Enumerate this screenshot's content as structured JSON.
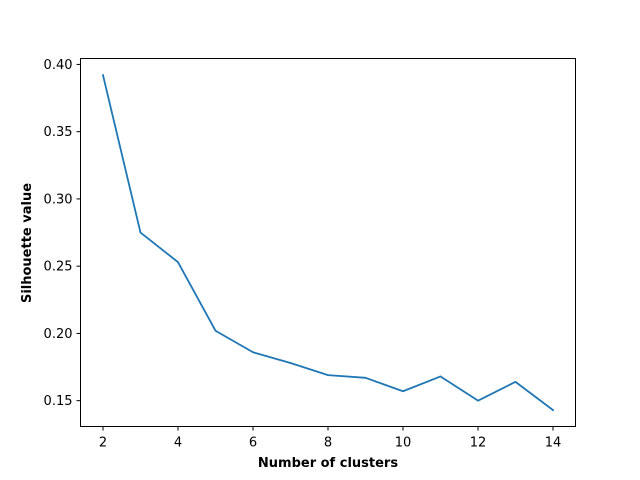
{
  "chart_data": {
    "type": "line",
    "title": "",
    "xlabel": "Number of clusters",
    "ylabel": "Silhouette value",
    "x": [
      2,
      3,
      4,
      5,
      6,
      7,
      8,
      9,
      10,
      11,
      12,
      13,
      14
    ],
    "series": [
      {
        "values": [
          0.392,
          0.275,
          0.253,
          0.202,
          0.186,
          0.178,
          0.169,
          0.167,
          0.157,
          0.168,
          0.15,
          0.164,
          0.143
        ],
        "color": "#1f77b4"
      }
    ],
    "xlim": [
      1.4,
      14.6
    ],
    "ylim": [
      0.1308,
      0.4044
    ],
    "x_ticks": [
      2,
      4,
      6,
      8,
      10,
      12,
      14
    ],
    "x_tick_labels": [
      "2",
      "4",
      "6",
      "8",
      "10",
      "12",
      "14"
    ],
    "y_ticks": [
      0.15,
      0.2,
      0.25,
      0.3,
      0.35,
      0.4
    ],
    "y_tick_labels": [
      "0.15",
      "0.20",
      "0.25",
      "0.30",
      "0.35",
      "0.40"
    ],
    "grid": false,
    "legend": "none"
  }
}
